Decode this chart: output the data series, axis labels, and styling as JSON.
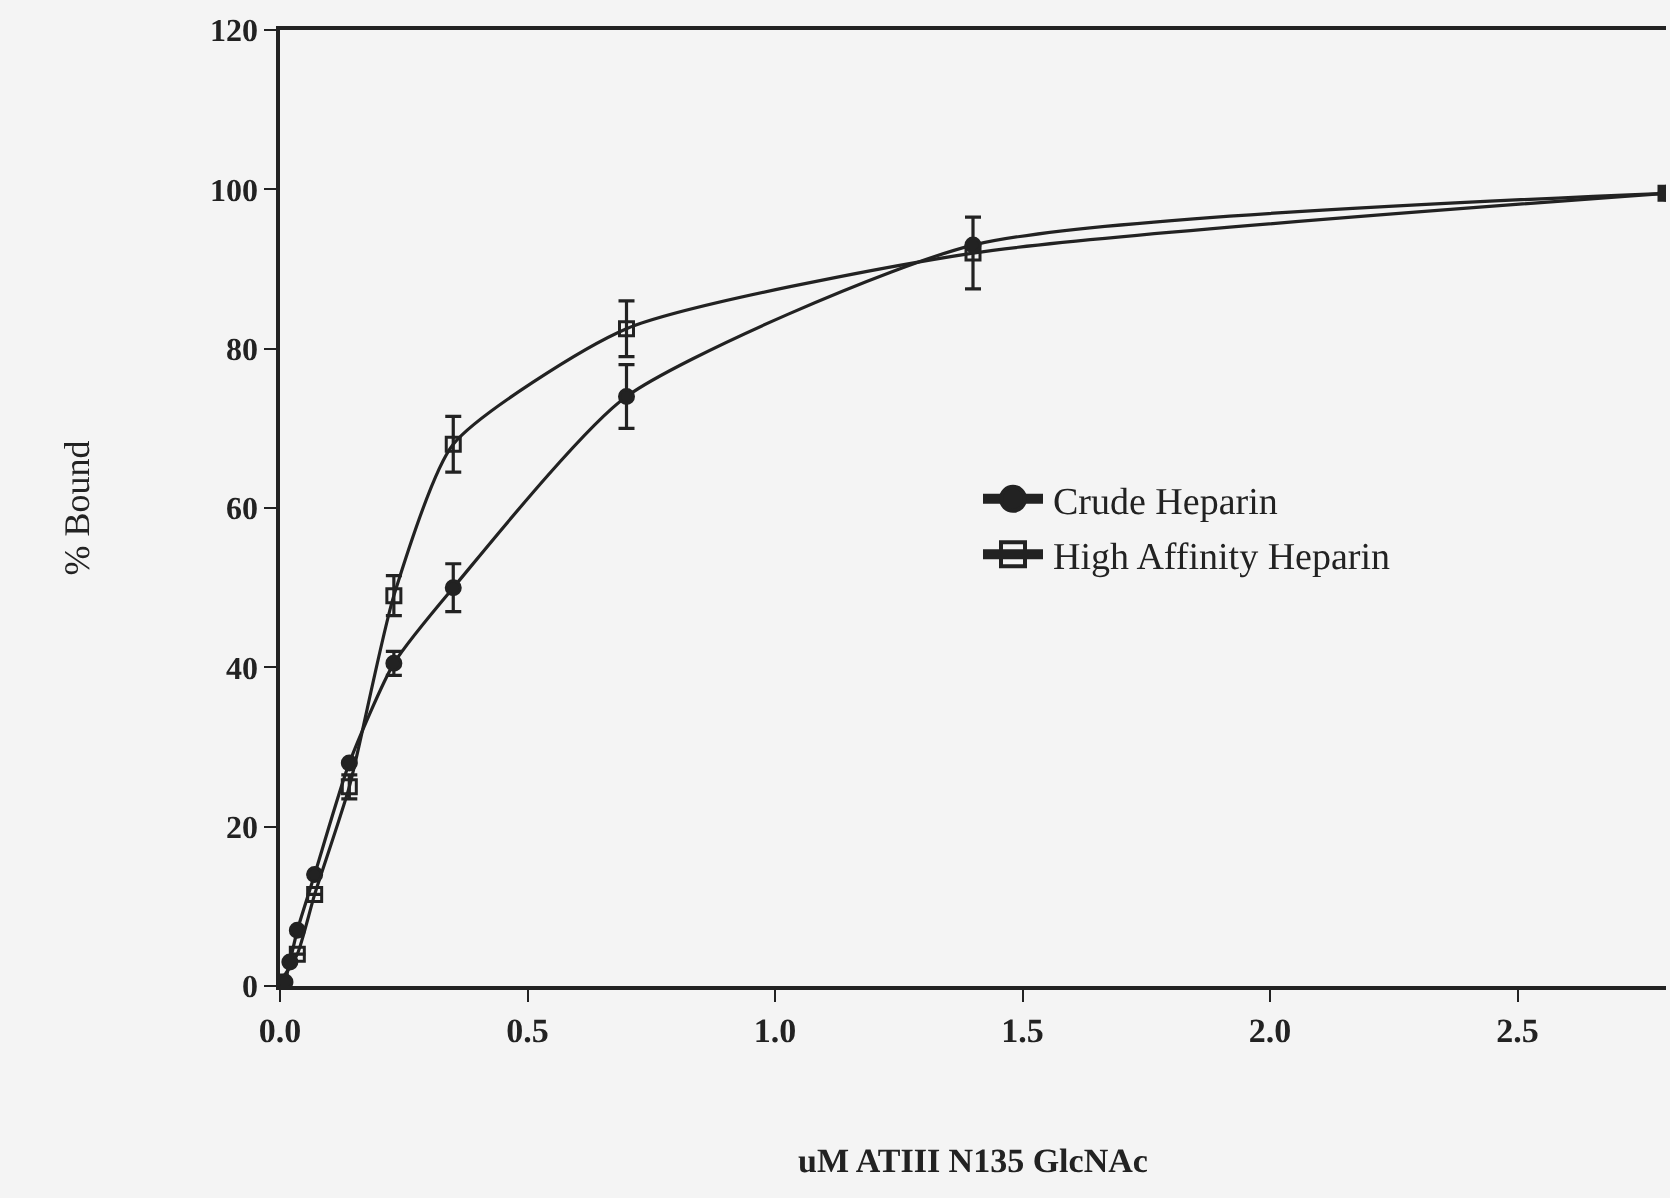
{
  "chart_data": {
    "type": "line",
    "xlabel": "uM ATIII N135 GlcNAc",
    "ylabel": "% Bound",
    "xlim": [
      0,
      2.8
    ],
    "ylim": [
      0,
      120
    ],
    "xticks": [
      {
        "value": 0,
        "label": "0.0"
      },
      {
        "value": 0.5,
        "label": "0.5"
      },
      {
        "value": 1,
        "label": "1.0"
      },
      {
        "value": 1.5,
        "label": "1.5"
      },
      {
        "value": 2,
        "label": "2.0"
      },
      {
        "value": 2.5,
        "label": "2.5"
      }
    ],
    "yticks": [
      0,
      20,
      40,
      60,
      80,
      100,
      120
    ],
    "grid": false,
    "legend": "right",
    "series": [
      {
        "name": "Crude Heparin",
        "color": "#222222",
        "marker": "circle",
        "x": [
          0.01,
          0.02,
          0.035,
          0.07,
          0.14,
          0.23,
          0.35,
          0.7,
          1.4,
          2.8
        ],
        "values": [
          0.5,
          3,
          7,
          14,
          28,
          40.5,
          50,
          74,
          93,
          99.5
        ],
        "errors": [
          null,
          null,
          null,
          null,
          null,
          1.5,
          3,
          4,
          null,
          null
        ]
      },
      {
        "name": "High Affinity Heparin",
        "color": "#222222",
        "marker": "square",
        "x": [
          0.0,
          0.035,
          0.07,
          0.14,
          0.23,
          0.35,
          0.7,
          1.4,
          2.8
        ],
        "values": [
          0.5,
          4,
          11.5,
          25,
          49,
          68,
          82.5,
          92,
          99.5
        ],
        "errors": [
          null,
          null,
          null,
          1.5,
          2.5,
          3.5,
          3.5,
          4.5,
          null
        ]
      }
    ]
  }
}
